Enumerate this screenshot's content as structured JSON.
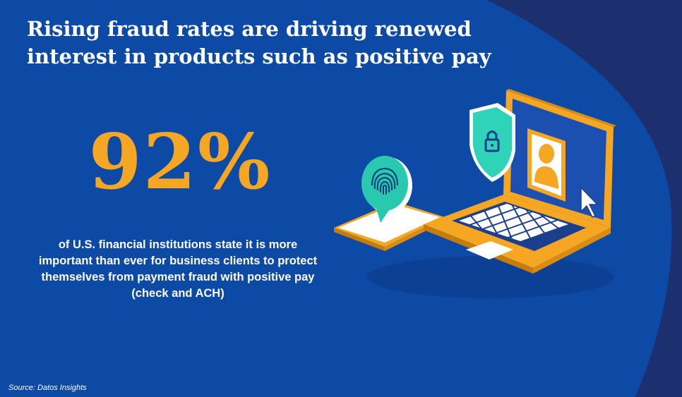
{
  "slide": {
    "title": "Rising fraud rates are driving renewed interest in products such as positive pay",
    "stat_value": "92%",
    "stat_description": "of U.S. financial institutions state it is more important than ever for business clients to protect themselves from payment fraud with positive pay (check and ACH)",
    "source": "Source: Datos Insights"
  },
  "colors": {
    "background": "#0d4aa6",
    "right_band": "#1c2f6e",
    "accent": "#f5a623",
    "text": "#ffffff",
    "teal": "#2fd3b8"
  },
  "illustration": {
    "icons": [
      "laptop-icon",
      "phone-icon",
      "fingerprint-icon",
      "shield-lock-icon",
      "user-profile-icon",
      "cursor-icon"
    ]
  }
}
